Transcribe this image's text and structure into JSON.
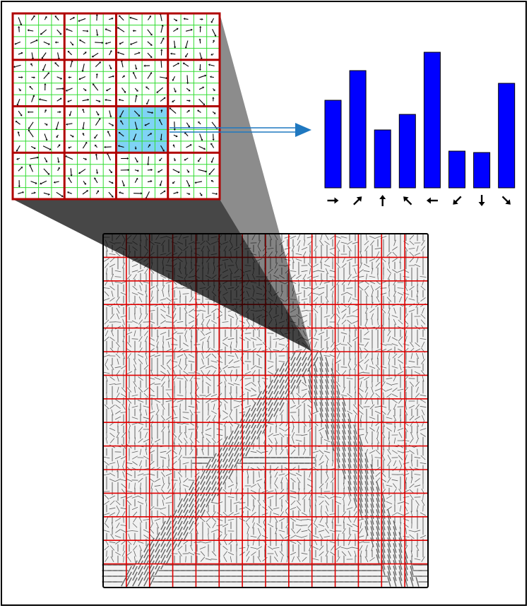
{
  "figure": {
    "frame_color": "#000000",
    "cell_grid_color": "#e00000",
    "zoom_block_border_color": "#b00000",
    "pixel_grid_color": "#33dd33",
    "highlight_color": "#7fd3f5",
    "arrow_color": "#1f78c0",
    "bar_color": "#0000ff",
    "funnel_color": "#000000"
  },
  "zoom_panel": {
    "blocks": 4,
    "sub_cells_per_block": 4,
    "highlighted_cell": {
      "row": 2,
      "col": 2
    }
  },
  "gradient_image": {
    "grid_columns": 14,
    "grid_rows": 15,
    "shape": "letter A gradient field"
  },
  "chart_data": {
    "type": "bar",
    "categories": [
      "right-arrow-icon",
      "up-right-arrow-icon",
      "up-arrow-icon",
      "up-left-arrow-icon",
      "left-arrow-icon",
      "down-left-arrow-icon",
      "down-arrow-icon",
      "down-right-arrow-icon"
    ],
    "angles_deg": [
      0,
      45,
      90,
      135,
      180,
      225,
      270,
      315
    ],
    "values": [
      0.62,
      0.83,
      0.41,
      0.52,
      0.96,
      0.26,
      0.25,
      0.74
    ],
    "ylim": [
      0,
      1
    ],
    "grid": false,
    "axes_visible": false
  }
}
